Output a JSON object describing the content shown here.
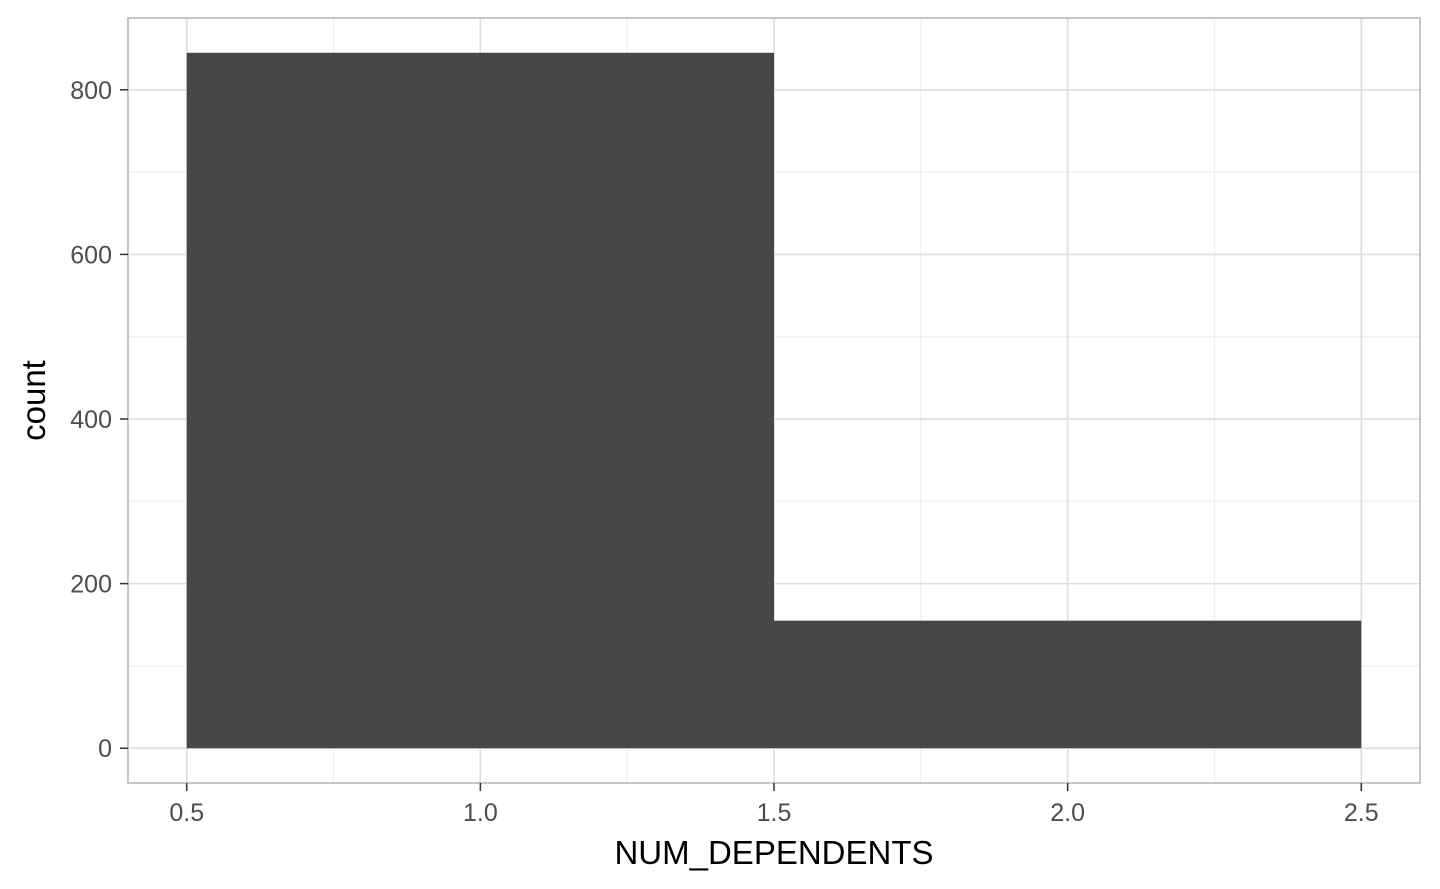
{
  "chart_data": {
    "type": "bar",
    "subtype": "histogram",
    "title": "",
    "xlabel": "NUM_DEPENDENTS",
    "ylabel": "count",
    "bins": [
      {
        "x_start": 0.5,
        "x_end": 1.5,
        "count": 845
      },
      {
        "x_start": 1.5,
        "x_end": 2.5,
        "count": 155
      }
    ],
    "xlim": [
      0.4,
      2.6
    ],
    "ylim": [
      -42.25,
      887.25
    ],
    "x_ticks": [
      0.5,
      1.0,
      1.5,
      2.0,
      2.5
    ],
    "x_tick_labels": [
      "0.5",
      "1.0",
      "1.5",
      "2.0",
      "2.5"
    ],
    "x_minor_ticks": [
      0.75,
      1.25,
      1.75,
      2.25
    ],
    "y_ticks": [
      0,
      200,
      400,
      600,
      800
    ],
    "y_tick_labels": [
      "0",
      "200",
      "400",
      "600",
      "800"
    ],
    "y_minor_ticks": [
      100,
      300,
      500,
      700
    ],
    "grid": true,
    "legend": "none",
    "colors": {
      "bar_fill": "#474747",
      "panel_border": "#b3b3b3",
      "grid_major": "#dedede",
      "grid_minor": "#eeeeee",
      "tick_label": "#4d4d4d",
      "axis_title": "#000000"
    }
  }
}
